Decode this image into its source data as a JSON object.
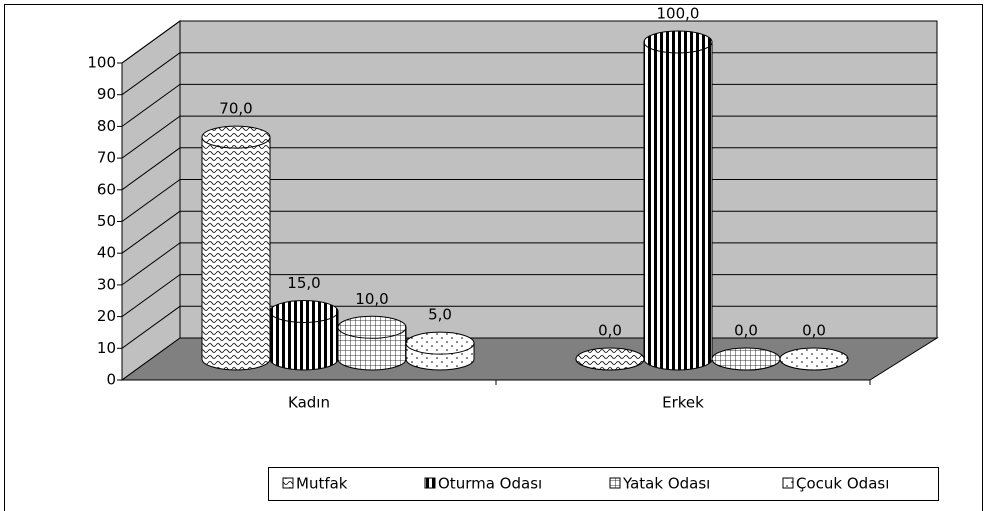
{
  "chart_data": {
    "type": "bar3d",
    "categories": [
      "Kadın",
      "Erkek"
    ],
    "series": [
      {
        "name": "Mutfak",
        "color": "#ffffff",
        "values": [
          70,
          0
        ],
        "value_labels": [
          "70,0",
          "0,0"
        ]
      },
      {
        "name": "Oturma Odası",
        "color": "#ffffff",
        "values": [
          15,
          100
        ],
        "value_labels": [
          "15,0",
          "100,0"
        ]
      },
      {
        "name": "Yatak Odası",
        "color": "#ffffff",
        "values": [
          10,
          0
        ],
        "value_labels": [
          "10,0",
          "0,0"
        ]
      },
      {
        "name": "Çocuk Odası",
        "color": "#ffffff",
        "values": [
          5,
          0
        ],
        "value_labels": [
          "5,0",
          "0,0"
        ]
      }
    ],
    "ylim": [
      0,
      100
    ],
    "yticks": [
      0,
      10,
      20,
      30,
      40,
      50,
      60,
      70,
      80,
      90,
      100
    ],
    "grid": true,
    "legend": "bottom"
  }
}
